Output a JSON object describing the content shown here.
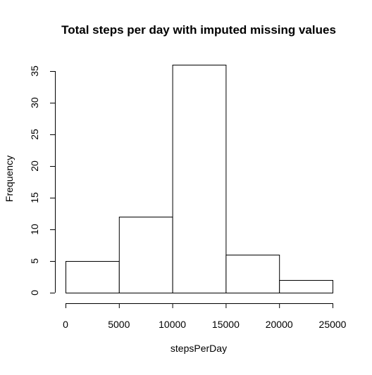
{
  "chart_data": {
    "type": "bar",
    "title": "Total steps per day with imputed missing values",
    "xlabel": "stepsPerDay",
    "ylabel": "Frequency",
    "bins": [
      {
        "start": 0,
        "end": 5000,
        "count": 5
      },
      {
        "start": 5000,
        "end": 10000,
        "count": 12
      },
      {
        "start": 10000,
        "end": 15000,
        "count": 36
      },
      {
        "start": 15000,
        "end": 20000,
        "count": 6
      },
      {
        "start": 20000,
        "end": 25000,
        "count": 2
      }
    ],
    "xlim": [
      0,
      25000
    ],
    "ylim": [
      0,
      35
    ],
    "xticks": [
      0,
      5000,
      10000,
      15000,
      20000,
      25000
    ],
    "yticks": [
      0,
      5,
      10,
      15,
      20,
      25,
      30,
      35
    ],
    "grid": false,
    "bar_fill": "#ffffff",
    "bar_stroke": "#000000"
  }
}
